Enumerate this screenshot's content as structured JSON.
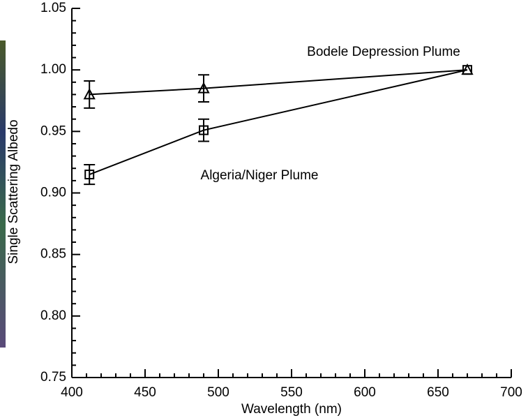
{
  "chart_data": {
    "type": "line",
    "xlabel": "Wavelength (nm)",
    "ylabel": "Single Scattering Albedo",
    "xlim": [
      400,
      700
    ],
    "xticks": [
      400,
      450,
      500,
      550,
      600,
      650,
      700
    ],
    "ylim": [
      0.75,
      1.05
    ],
    "yticks": [
      0.75,
      {
        "value": 0.8,
        "label": "0.80"
      },
      0.85,
      {
        "value": 0.9,
        "label": "0.90"
      },
      0.95,
      {
        "value": 1.0,
        "label": "1.00"
      },
      1.05
    ],
    "series": [
      {
        "name": "Bodele Depression Plume",
        "color": "#000000",
        "marker": "triangle",
        "x": [
          412,
          490,
          670
        ],
        "values": [
          0.98,
          0.985,
          1.0
        ],
        "errors": [
          0.011,
          0.011,
          0
        ]
      },
      {
        "name": "Algeria/Niger Plume",
        "color": "#000000",
        "marker": "square",
        "x": [
          412,
          490,
          670
        ],
        "values": [
          0.915,
          0.951,
          1.0
        ],
        "errors": [
          0.008,
          0.009,
          0
        ]
      }
    ]
  }
}
